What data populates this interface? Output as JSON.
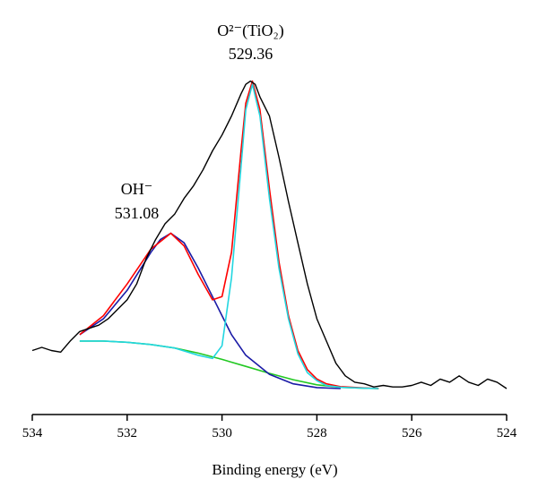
{
  "chart_data": {
    "type": "line",
    "title": "",
    "xlabel": "Binding energy (eV)",
    "ylabel": "",
    "x_reversed": true,
    "xlim": [
      534,
      524
    ],
    "xticks": [
      534,
      532,
      530,
      528,
      526,
      524
    ],
    "xtick_labels": [
      "534",
      "532",
      "530",
      "528",
      "526",
      "524"
    ],
    "y_axis_shown": false,
    "grid": false,
    "legend": "none",
    "annotations": [
      {
        "line1": "O²⁻(TiO₂)",
        "line2": "529.36",
        "x": 529.36
      },
      {
        "line1": "OH⁻",
        "line2": "531.08",
        "x": 531.08
      }
    ],
    "series": [
      {
        "role": "raw-spectrum",
        "color": "#000000",
        "x": [
          534.0,
          533.8,
          533.6,
          533.4,
          533.2,
          533.0,
          532.8,
          532.6,
          532.4,
          532.2,
          532.0,
          531.8,
          531.6,
          531.4,
          531.2,
          531.0,
          530.8,
          530.6,
          530.4,
          530.2,
          530.0,
          529.8,
          529.6,
          529.5,
          529.4,
          529.3,
          529.2,
          529.0,
          528.8,
          528.6,
          528.4,
          528.2,
          528.0,
          527.8,
          527.6,
          527.4,
          527.2,
          527.0,
          526.8,
          526.6,
          526.4,
          526.2,
          526.0,
          525.8,
          525.6,
          525.4,
          525.2,
          525.0,
          524.8,
          524.6,
          524.4,
          524.2,
          524.0
        ],
        "y": [
          12,
          13,
          12,
          11.5,
          15,
          18,
          19,
          20,
          22,
          25,
          28,
          33,
          41,
          47,
          52,
          55,
          60,
          64,
          69,
          75,
          80,
          86,
          93,
          96,
          97,
          96,
          92,
          86,
          73,
          59,
          46,
          33,
          22,
          15,
          8,
          4,
          2,
          1.5,
          0.5,
          1,
          0.5,
          0.5,
          1,
          2,
          1,
          3,
          2,
          4,
          2,
          1,
          3,
          2,
          0
        ]
      },
      {
        "role": "fit-envelope",
        "color": "#ff0000",
        "x": [
          533.0,
          532.5,
          532.0,
          531.5,
          531.08,
          530.8,
          530.5,
          530.2,
          530.0,
          529.8,
          529.6,
          529.5,
          529.36,
          529.2,
          529.0,
          528.8,
          528.6,
          528.4,
          528.2,
          528.0,
          527.8,
          527.5,
          527.0,
          526.7
        ],
        "y": [
          17,
          23,
          33,
          44,
          49,
          45,
          36,
          28,
          29,
          43,
          75,
          90,
          97,
          88,
          63,
          40,
          23,
          12,
          6,
          3,
          1.5,
          0.6,
          0.2,
          0
        ]
      },
      {
        "role": "OH-component",
        "color": "#1a1aa6",
        "x": [
          533.0,
          532.5,
          532.0,
          531.5,
          531.3,
          531.08,
          530.8,
          530.5,
          530.2,
          530.0,
          529.8,
          529.5,
          529.0,
          528.5,
          528.0,
          527.5
        ],
        "y": [
          17,
          22,
          31,
          43,
          47,
          49,
          46,
          38,
          29,
          23,
          17,
          10.5,
          4.5,
          1.5,
          0.3,
          0
        ]
      },
      {
        "role": "O2-(TiO2)-component",
        "color": "#22d6e0",
        "x": [
          533.0,
          532.5,
          532.0,
          531.5,
          531.0,
          530.5,
          530.2,
          530.0,
          529.8,
          529.6,
          529.5,
          529.36,
          529.2,
          529.0,
          528.8,
          528.6,
          528.4,
          528.2,
          528.0,
          527.8,
          527.5,
          527.0,
          526.7
        ],
        "y": [
          15,
          15,
          14.6,
          13.9,
          12.8,
          10.5,
          9.5,
          13.5,
          35,
          70,
          88,
          96,
          86,
          60,
          38,
          22,
          11,
          5,
          2.5,
          1,
          0.4,
          0.1,
          0
        ]
      },
      {
        "role": "background",
        "color": "#22c822",
        "x": [
          533.0,
          532.5,
          532.0,
          531.5,
          531.0,
          530.5,
          530.0,
          529.5,
          529.0,
          528.5,
          528.0,
          527.5,
          527.0,
          526.7
        ],
        "y": [
          15,
          15,
          14.6,
          13.9,
          12.8,
          11.2,
          9.2,
          7,
          4.8,
          2.8,
          1.2,
          0.4,
          0.1,
          0
        ]
      }
    ]
  }
}
